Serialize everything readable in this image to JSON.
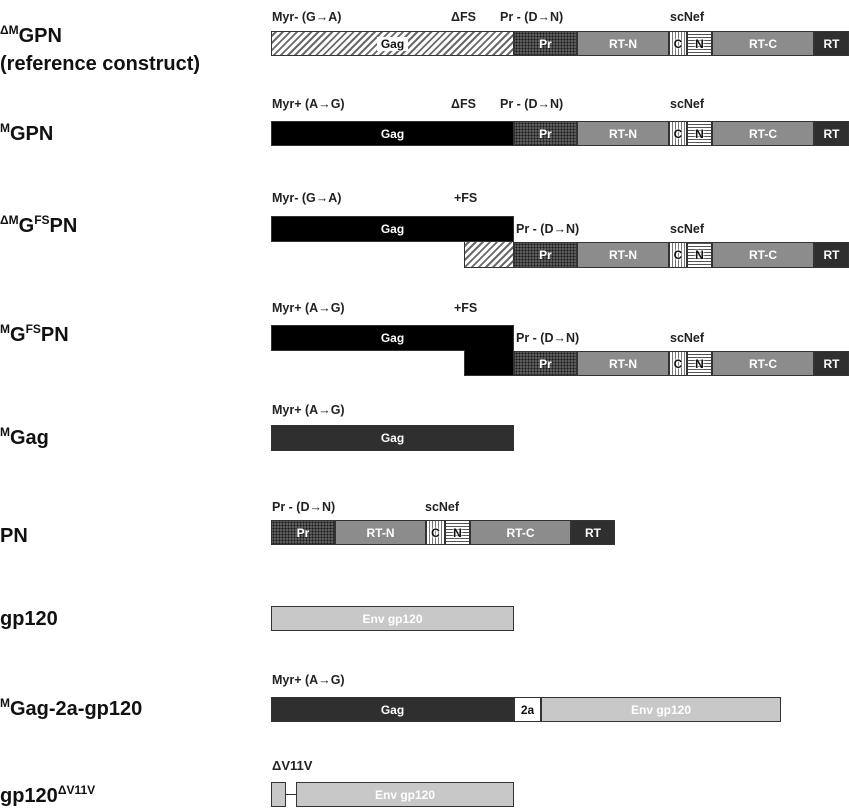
{
  "constructs": {
    "c1": {
      "name_sup": "ΔM",
      "name_main": "GPN",
      "name_line2": "(reference construct)",
      "annotations": {
        "myr": "Myr- (G→A)",
        "fs": "ΔFS",
        "pr": "Pr - (D→N)",
        "scnef": "scNef"
      },
      "segments": {
        "gag": "Gag",
        "pr": "Pr",
        "rtn": "RT-N",
        "c": "C",
        "n": "N",
        "rtc": "RT-C",
        "rt": "RT"
      }
    },
    "c2": {
      "name_sup": "M",
      "name_main": "GPN",
      "annotations": {
        "myr": "Myr+ (A→G)",
        "fs": "ΔFS",
        "pr": "Pr - (D→N)",
        "scnef": "scNef"
      },
      "segments": {
        "gag": "Gag",
        "pr": "Pr",
        "rtn": "RT-N",
        "c": "C",
        "n": "N",
        "rtc": "RT-C",
        "rt": "RT"
      }
    },
    "c3": {
      "name_sup1": "ΔM",
      "name_mid": "G",
      "name_sup2": "FS",
      "name_end": "PN",
      "annotations": {
        "myr": "Myr- (G→A)",
        "fs": "+FS",
        "pr": "Pr - (D→N)",
        "scnef": "scNef"
      },
      "segments": {
        "gag": "Gag",
        "pr": "Pr",
        "rtn": "RT-N",
        "c": "C",
        "n": "N",
        "rtc": "RT-C",
        "rt": "RT"
      }
    },
    "c4": {
      "name_sup1": "M",
      "name_mid": "G",
      "name_sup2": "FS",
      "name_end": "PN",
      "annotations": {
        "myr": "Myr+ (A→G)",
        "fs": "+FS",
        "pr": "Pr - (D→N)",
        "scnef": "scNef"
      },
      "segments": {
        "gag": "Gag",
        "pr": "Pr",
        "rtn": "RT-N",
        "c": "C",
        "n": "N",
        "rtc": "RT-C",
        "rt": "RT"
      }
    },
    "c5": {
      "name_sup": "M",
      "name_main": "Gag",
      "annotations": {
        "myr": "Myr+ (A→G)"
      },
      "segments": {
        "gag": "Gag"
      }
    },
    "c6": {
      "name_main": "PN",
      "annotations": {
        "pr": "Pr - (D→N)",
        "scnef": "scNef"
      },
      "segments": {
        "pr": "Pr",
        "rtn": "RT-N",
        "c": "C",
        "n": "N",
        "rtc": "RT-C",
        "rt": "RT"
      }
    },
    "c7": {
      "name_main": "gp120",
      "segments": {
        "env": "Env gp120"
      }
    },
    "c8": {
      "name_sup": "M",
      "name_main": "Gag-2a-gp120",
      "annotations": {
        "myr": "Myr+ (A→G)"
      },
      "segments": {
        "gag": "Gag",
        "twoa": "2a",
        "env": "Env gp120"
      }
    },
    "c9": {
      "name_main": "gp120",
      "name_sup": "ΔV11V",
      "annotations": {
        "dv": "ΔV11V"
      },
      "segments": {
        "env": "Env gp120"
      }
    }
  }
}
